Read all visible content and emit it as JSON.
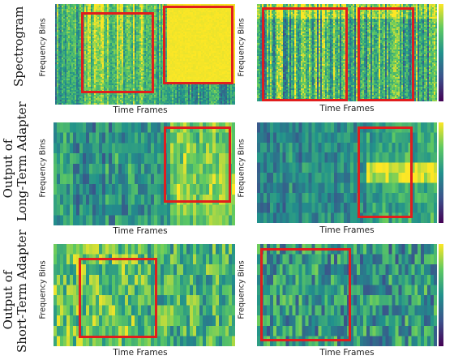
{
  "rows": [
    {
      "label": "Spectrogram",
      "label_lines": [
        "Spectrogram"
      ]
    },
    {
      "label": "Output of Long-Term Adapter",
      "label_lines": [
        "Output of",
        "Long-Term Adapter"
      ]
    },
    {
      "label": "Output of Short-Term Adapter",
      "label_lines": [
        "Output of",
        "Short-Term Adapter"
      ]
    }
  ],
  "axes": {
    "xlabel": "Time Frames",
    "ylabel": "Frequency Bins"
  },
  "highlight_color": "#e11d1d",
  "colormap": "viridis",
  "panels": [
    {
      "id": "spec-left",
      "style": "spectrogram",
      "yellow_block": true
    },
    {
      "id": "spec-right",
      "style": "spectrogram-striped",
      "yellow_block": false
    },
    {
      "id": "long-left",
      "style": "long-term"
    },
    {
      "id": "long-right",
      "style": "long-term"
    },
    {
      "id": "short-left",
      "style": "short-term"
    },
    {
      "id": "short-right",
      "style": "short-term"
    }
  ]
}
